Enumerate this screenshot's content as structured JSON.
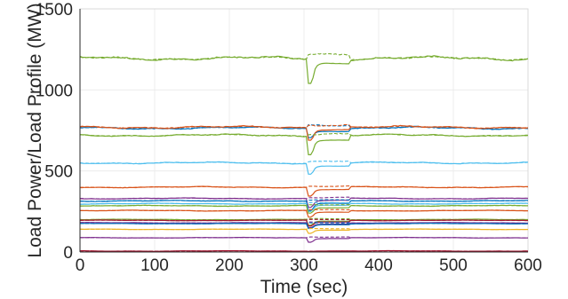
{
  "chart_data": {
    "type": "line",
    "title": "",
    "xlabel": "Time (sec)",
    "ylabel": "Load Power/Load Profile (MW)",
    "xlim": [
      0,
      600
    ],
    "ylim": [
      0,
      1500
    ],
    "xticks": [
      "0",
      "100",
      "200",
      "300",
      "400",
      "500",
      "600"
    ],
    "yticks": [
      "0",
      "500",
      "1000",
      "1500"
    ],
    "grid": true,
    "legend": "none",
    "disturbance_window_sec": [
      305,
      360
    ],
    "series": [
      {
        "color": "#77AC30",
        "base": 1195,
        "dip": 1040,
        "recover": 1165,
        "profile_offset": 30
      },
      {
        "color": "#0072BD",
        "base": 765,
        "dip": 705,
        "recover": 745,
        "profile_offset": 20
      },
      {
        "color": "#D95319",
        "base": 770,
        "dip": 690,
        "recover": 755,
        "profile_offset": 15
      },
      {
        "color": "#77AC30",
        "base": 720,
        "dip": 600,
        "recover": 690,
        "profile_offset": 10
      },
      {
        "color": "#4DBEEE",
        "base": 550,
        "dip": 480,
        "recover": 530,
        "profile_offset": 10
      },
      {
        "color": "#D95319",
        "base": 400,
        "dip": 345,
        "recover": 385,
        "profile_offset": 5
      },
      {
        "color": "#7E2F8E",
        "base": 330,
        "dip": 275,
        "recover": 318,
        "profile_offset": 5
      },
      {
        "color": "#0072BD",
        "base": 315,
        "dip": 255,
        "recover": 300,
        "profile_offset": 5
      },
      {
        "color": "#4DBEEE",
        "base": 298,
        "dip": 250,
        "recover": 288,
        "profile_offset": 5
      },
      {
        "color": "#77AC30",
        "base": 285,
        "dip": 240,
        "recover": 272,
        "profile_offset": 5
      },
      {
        "color": "#D95319",
        "base": 255,
        "dip": 215,
        "recover": 245,
        "profile_offset": 5
      },
      {
        "color": "#77AC30",
        "base": 200,
        "dip": 165,
        "recover": 190,
        "profile_offset": 5
      },
      {
        "color": "#A2142F",
        "base": 195,
        "dip": 160,
        "recover": 185,
        "profile_offset": 5
      },
      {
        "color": "#7E2F8E",
        "base": 180,
        "dip": 150,
        "recover": 172,
        "profile_offset": 5
      },
      {
        "color": "#0072BD",
        "base": 175,
        "dip": 145,
        "recover": 168,
        "profile_offset": 5
      },
      {
        "color": "#EDB120",
        "base": 140,
        "dip": 115,
        "recover": 135,
        "profile_offset": 5
      },
      {
        "color": "#7E2F8E",
        "base": 88,
        "dip": 60,
        "recover": 83,
        "profile_offset": 5
      },
      {
        "color": "#A2142F",
        "base": 6,
        "dip": 4,
        "recover": 6,
        "profile_offset": 0
      }
    ]
  }
}
